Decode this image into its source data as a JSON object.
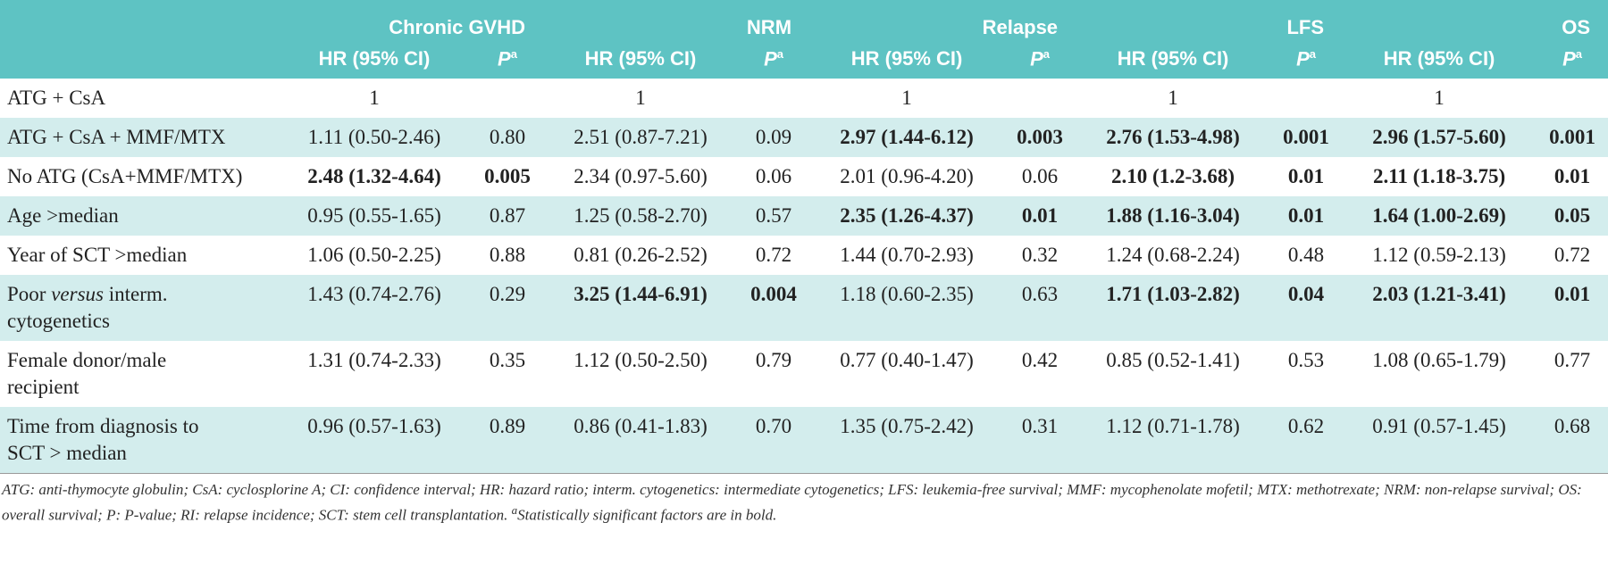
{
  "header": {
    "groups": [
      "Chronic GVHD",
      "NRM",
      "Relapse",
      "LFS",
      "OS"
    ],
    "hr_label": "HR (95% CI)",
    "p_label": "P",
    "p_sup": "a"
  },
  "table": {
    "rows": [
      {
        "label": "ATG + CsA",
        "cells": [
          "1",
          null,
          "1",
          null,
          "1",
          null,
          "1",
          null,
          "1",
          null
        ],
        "bold": []
      },
      {
        "label": "ATG + CsA + MMF/MTX",
        "cells": [
          "1.11 (0.50-2.46)",
          "0.80",
          "2.51 (0.87-7.21)",
          "0.09",
          "2.97 (1.44-6.12)",
          "0.003",
          "2.76 (1.53-4.98)",
          "0.001",
          "2.96 (1.57-5.60)",
          "0.001"
        ],
        "bold": [
          4,
          5,
          6,
          7,
          8,
          9
        ]
      },
      {
        "label": "No ATG (CsA+MMF/MTX)",
        "cells": [
          "2.48 (1.32-4.64)",
          "0.005",
          "2.34 (0.97-5.60)",
          "0.06",
          "2.01 (0.96-4.20)",
          "0.06",
          "2.10 (1.2-3.68)",
          "0.01",
          "2.11  (1.18-3.75)",
          "0.01"
        ],
        "bold": [
          0,
          1,
          6,
          7,
          8,
          9
        ]
      },
      {
        "label": "Age >median",
        "cells": [
          "0.95 (0.55-1.65)",
          "0.87",
          "1.25 (0.58-2.70)",
          "0.57",
          "2.35 (1.26-4.37)",
          "0.01",
          "1.88 (1.16-3.04)",
          "0.01",
          "1.64 (1.00-2.69)",
          "0.05"
        ],
        "bold": [
          4,
          5,
          6,
          7,
          8,
          9
        ]
      },
      {
        "label": "Year of SCT >median",
        "cells": [
          "1.06 (0.50-2.25)",
          "0.88",
          "0.81 (0.26-2.52)",
          "0.72",
          "1.44 (0.70-2.93)",
          "0.32",
          "1.24 (0.68-2.24)",
          "0.48",
          "1.12 (0.59-2.13)",
          "0.72"
        ],
        "bold": []
      },
      {
        "label": [
          "Poor ",
          "versus",
          " interm. cytogenetics"
        ],
        "cells": [
          "1.43 (0.74-2.76)",
          "0.29",
          "3.25 (1.44-6.91)",
          "0.004",
          "1.18 (0.60-2.35)",
          "0.63",
          "1.71 (1.03-2.82)",
          "0.04",
          "2.03 (1.21-3.41)",
          "0.01"
        ],
        "bold": [
          2,
          3,
          6,
          7,
          8,
          9
        ]
      },
      {
        "label": "Female donor/male recipient",
        "cells": [
          "1.31 (0.74-2.33)",
          "0.35",
          "1.12 (0.50-2.50)",
          "0.79",
          "0.77 (0.40-1.47)",
          "0.42",
          "0.85 (0.52-1.41)",
          "0.53",
          "1.08 (0.65-1.79)",
          "0.77"
        ],
        "bold": []
      },
      {
        "label": "Time from diagnosis to SCT > median",
        "cells": [
          "0.96 (0.57-1.63)",
          "0.89",
          "0.86 (0.41-1.83)",
          "0.70",
          "1.35 (0.75-2.42)",
          "0.31",
          "1.12 (0.71-1.78)",
          "0.62",
          "0.91 (0.57-1.45)",
          "0.68"
        ],
        "bold": []
      }
    ]
  },
  "footnote": {
    "text": "ATG: anti-thymocyte globulin; CsA: cyclosplorine A; CI: confidence interval; HR: hazard ratio; interm. cytogenetics: intermediate cytogenetics; LFS: leukemia-free survival; MMF: mycophenolate mofetil; MTX: methotrexate; NRM: non-relapse survival; OS: overall survival; P: P-value; RI: relapse incidence; SCT: stem cell transplantation. ",
    "sup": "a",
    "tail": "Statistically significant factors are in bold."
  }
}
